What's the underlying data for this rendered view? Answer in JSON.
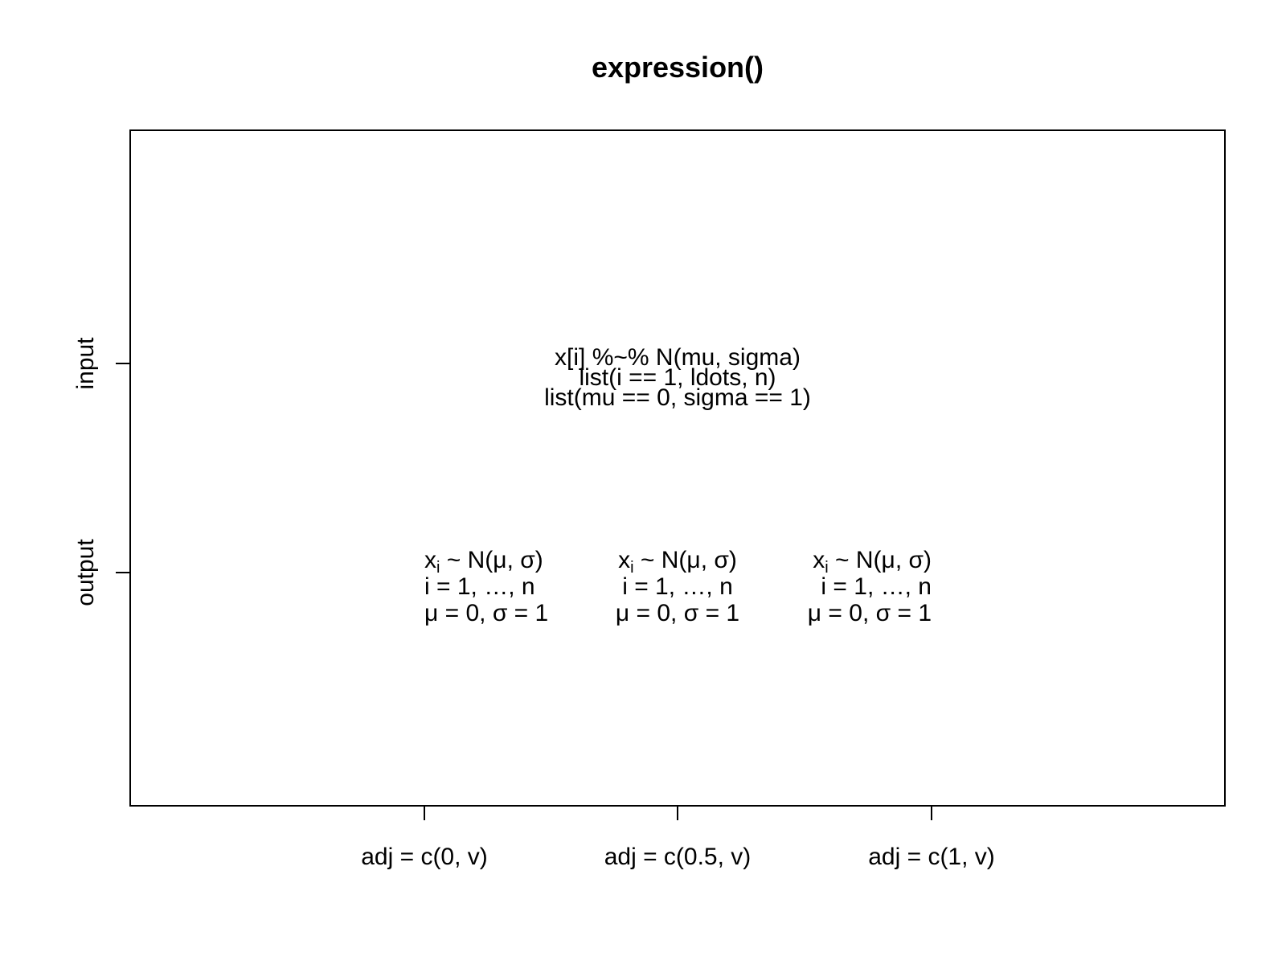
{
  "plot": {
    "title": "expression()",
    "x_ticks": [
      "adj = c(0, v)",
      "adj = c(0.5, v)",
      "adj = c(1, v)"
    ],
    "y_ticks": [
      "input",
      "output"
    ],
    "input_lines": [
      "x[i] %~% N(mu, sigma)",
      "list(i == 1, ldots, n)",
      "list(mu == 0, sigma == 1)"
    ],
    "output_columns": [
      [
        [
          "x",
          "i",
          " ~ N(μ, σ)"
        ],
        [
          "i = 1, …, n"
        ],
        [
          "μ = 0, σ = 1"
        ]
      ],
      [
        [
          "x",
          "i",
          " ~ N(μ, σ)"
        ],
        [
          "i = 1, …, n"
        ],
        [
          "μ = 0, σ = 1"
        ]
      ],
      [
        [
          "x",
          "i",
          " ~ N(μ, σ)"
        ],
        [
          "i = 1, …, n"
        ],
        [
          "μ = 0, σ = 1"
        ]
      ]
    ]
  }
}
